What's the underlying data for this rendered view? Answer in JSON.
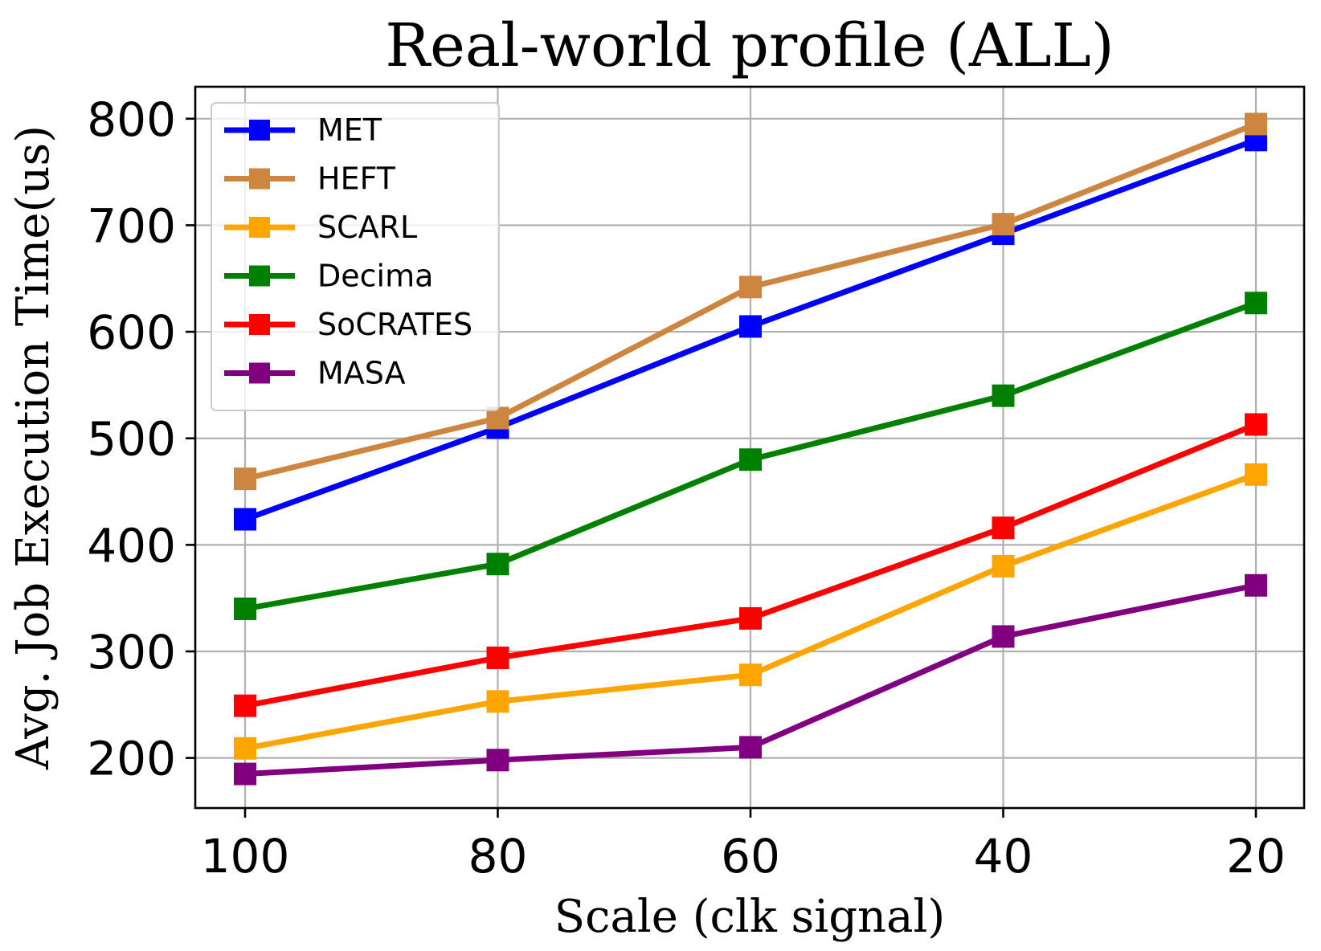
{
  "chart_data": {
    "type": "line",
    "title": "Real-world profile (ALL)",
    "xlabel": "Scale (clk signal)",
    "ylabel": "Avg. Job Execution Time(us)",
    "categories": [
      "100",
      "80",
      "60",
      "40",
      "20"
    ],
    "yticks": [
      "200",
      "300",
      "400",
      "500",
      "600",
      "700",
      "800"
    ],
    "ytick_values": [
      200,
      300,
      400,
      500,
      600,
      700,
      800
    ],
    "ylim": [
      153,
      830
    ],
    "grid": true,
    "legend_position": "top-left",
    "marker": "square",
    "series": [
      {
        "name": "MET",
        "color": "#0000ff",
        "values": [
          424,
          510,
          605,
          692,
          780
        ]
      },
      {
        "name": "HEFT",
        "color": "#cd853f",
        "values": [
          462,
          519,
          642,
          701,
          795
        ]
      },
      {
        "name": "SCARL",
        "color": "#ffa500",
        "values": [
          209,
          253,
          278,
          380,
          466
        ]
      },
      {
        "name": "Decima",
        "color": "#008000",
        "values": [
          340,
          382,
          480,
          540,
          627
        ]
      },
      {
        "name": "SoCRATES",
        "color": "#ff0000",
        "values": [
          249,
          294,
          331,
          416,
          513
        ]
      },
      {
        "name": "MASA",
        "color": "#800080",
        "values": [
          185,
          198,
          210,
          314,
          362
        ]
      }
    ]
  }
}
